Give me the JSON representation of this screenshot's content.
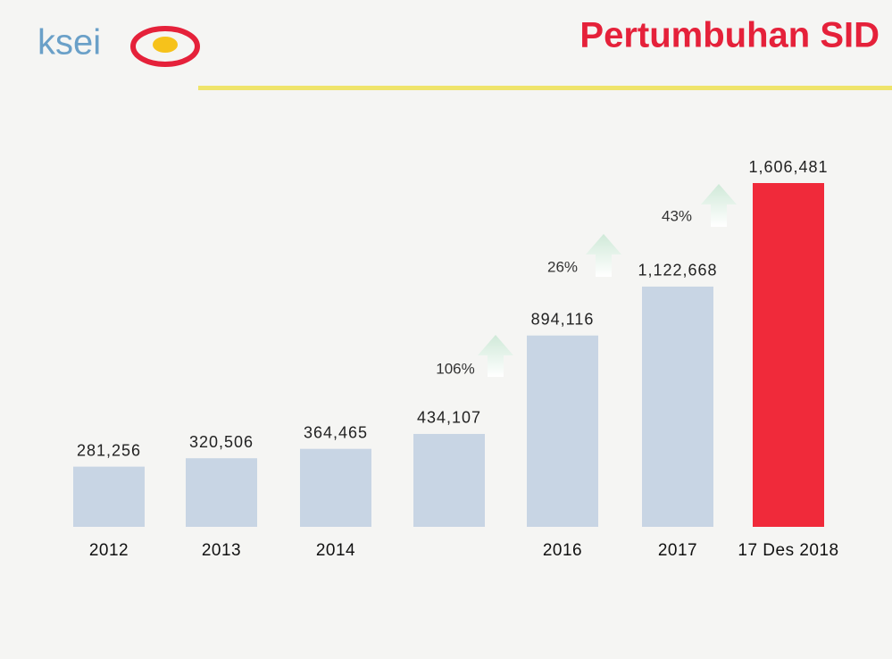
{
  "logo": "ksei",
  "chart_data": {
    "type": "bar",
    "title": "Pertumbuhan SID",
    "categories": [
      "2012",
      "2013",
      "2014",
      null,
      "2016",
      "2017",
      "17 Des 2018"
    ],
    "values": [
      281256,
      320506,
      364465,
      434107,
      894116,
      1122668,
      1606481
    ],
    "value_labels": [
      "281,256",
      "320,506",
      "364,465",
      "434,107",
      "894,116",
      "1,122,668",
      "1,606,481"
    ],
    "colors": [
      "#c8d5e4",
      "#c8d5e4",
      "#c8d5e4",
      "#c8d5e4",
      "#c8d5e4",
      "#c8d5e4",
      "#f02a3a"
    ],
    "growth_labels": [
      "106%",
      "26%",
      "43%"
    ]
  }
}
